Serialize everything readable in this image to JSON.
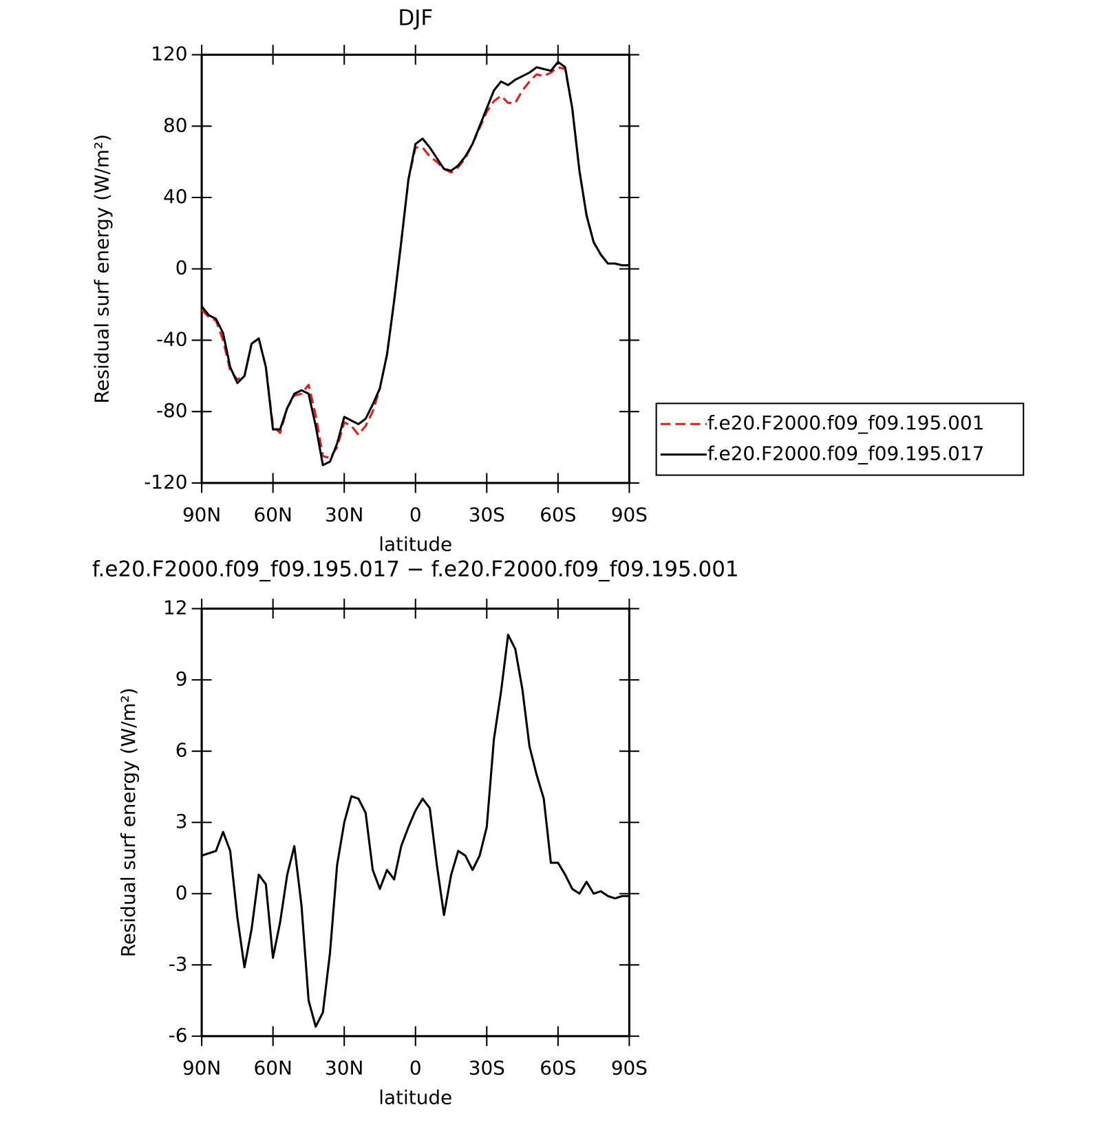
{
  "chart_data": [
    {
      "type": "line",
      "title": "DJF",
      "xlabel": "latitude",
      "ylabel": "Residual surf energy (W/m²)",
      "x": [
        90,
        87,
        84,
        81,
        78,
        75,
        72,
        69,
        66,
        63,
        60,
        57,
        54,
        51,
        48,
        45,
        42,
        39,
        36,
        33,
        30,
        27,
        24,
        21,
        18,
        15,
        12,
        9,
        6,
        3,
        0,
        -3,
        -6,
        -9,
        -12,
        -15,
        -18,
        -21,
        -24,
        -27,
        -30,
        -33,
        -36,
        -39,
        -42,
        -45,
        -48,
        -51,
        -54,
        -57,
        -60,
        -63,
        -66,
        -69,
        -72,
        -75,
        -78,
        -81,
        -84,
        -87,
        -90
      ],
      "series": [
        {
          "name": "f.e20.F2000.f09_f09.195.001",
          "color": "#e41a1c",
          "linestyle": "dashed",
          "values": [
            -23,
            -27,
            -29,
            -40,
            -57,
            -62,
            -60,
            -42,
            -39,
            -55,
            -88,
            -92,
            -78,
            -71,
            -70,
            -65,
            -82,
            -105,
            -106,
            -100,
            -86,
            -88,
            -93,
            -88,
            -80,
            -67,
            -48,
            -18,
            15,
            50,
            68,
            68,
            63,
            60,
            56,
            54,
            57,
            62,
            70,
            79,
            88,
            94,
            97,
            93,
            93,
            100,
            105,
            109,
            108,
            110,
            113,
            112,
            90,
            55,
            30,
            15,
            8,
            3,
            3,
            2,
            2
          ]
        },
        {
          "name": "f.e20.F2000.f09_f09.195.017",
          "color": "#000000",
          "linestyle": "solid",
          "values": [
            -21,
            -26,
            -28,
            -36,
            -55,
            -64,
            -60,
            -42,
            -39,
            -55,
            -90,
            -90,
            -78,
            -70,
            -68,
            -70,
            -88,
            -110,
            -108,
            -98,
            -83,
            -85,
            -87,
            -84,
            -76,
            -67,
            -48,
            -18,
            15,
            50,
            70,
            73,
            68,
            62,
            56,
            55,
            58,
            63,
            70,
            80,
            90,
            100,
            105,
            103,
            106,
            108,
            110,
            113,
            112,
            111,
            116,
            113,
            90,
            55,
            30,
            15,
            8,
            3,
            3,
            2,
            2
          ]
        }
      ],
      "xlim": [
        90,
        -90
      ],
      "xticks": [
        {
          "value": 90,
          "label": "90N"
        },
        {
          "value": 60,
          "label": "60N"
        },
        {
          "value": 30,
          "label": "30N"
        },
        0,
        {
          "value": -30,
          "label": "30S"
        },
        {
          "value": -60,
          "label": "60S"
        },
        {
          "value": -90,
          "label": "90S"
        }
      ],
      "ylim": [
        -120,
        120
      ],
      "yticks": [
        -120,
        -80,
        -40,
        0,
        40,
        80,
        120
      ],
      "legend": "outside right"
    },
    {
      "type": "line",
      "title": "f.e20.F2000.f09_f09.195.017 − f.e20.F2000.f09_f09.195.001",
      "xlabel": "latitude",
      "ylabel": "Residual surf energy (W/m²)",
      "x": [
        90,
        87,
        84,
        81,
        78,
        75,
        72,
        69,
        66,
        63,
        60,
        57,
        54,
        51,
        48,
        45,
        42,
        39,
        36,
        33,
        30,
        27,
        24,
        21,
        18,
        15,
        12,
        9,
        6,
        3,
        0,
        -3,
        -6,
        -9,
        -12,
        -15,
        -18,
        -21,
        -24,
        -27,
        -30,
        -33,
        -36,
        -39,
        -42,
        -45,
        -48,
        -51,
        -54,
        -57,
        -60,
        -63,
        -66,
        -69,
        -72,
        -75,
        -78,
        -81,
        -84,
        -87,
        -90
      ],
      "series": [
        {
          "color": "#000000",
          "linestyle": "solid",
          "values": [
            1.6,
            1.7,
            1.8,
            2.6,
            1.8,
            -1.0,
            -3.1,
            -1.5,
            0.8,
            0.4,
            -2.7,
            -1.2,
            0.8,
            2.0,
            -0.5,
            -4.5,
            -5.6,
            -5.0,
            -2.5,
            1.2,
            3.0,
            4.1,
            4.0,
            3.4,
            1.0,
            0.2,
            1.0,
            0.6,
            2.0,
            2.8,
            3.5,
            4.0,
            3.6,
            1.2,
            -0.9,
            0.8,
            1.8,
            1.6,
            1.0,
            1.6,
            2.8,
            6.5,
            8.5,
            10.9,
            10.3,
            8.6,
            6.2,
            5.0,
            4.0,
            1.3,
            1.3,
            0.8,
            0.2,
            0.0,
            0.5,
            0.0,
            0.1,
            -0.1,
            -0.2,
            -0.1,
            -0.1
          ]
        }
      ],
      "xlim": [
        90,
        -90
      ],
      "xticks": [
        {
          "value": 90,
          "label": "90N"
        },
        {
          "value": 60,
          "label": "60N"
        },
        {
          "value": 30,
          "label": "30N"
        },
        0,
        {
          "value": -30,
          "label": "30S"
        },
        {
          "value": -60,
          "label": "60S"
        },
        {
          "value": -90,
          "label": "90S"
        }
      ],
      "ylim": [
        -6,
        12
      ],
      "yticks": [
        -6,
        -3,
        0,
        3,
        6,
        9,
        12
      ]
    }
  ]
}
